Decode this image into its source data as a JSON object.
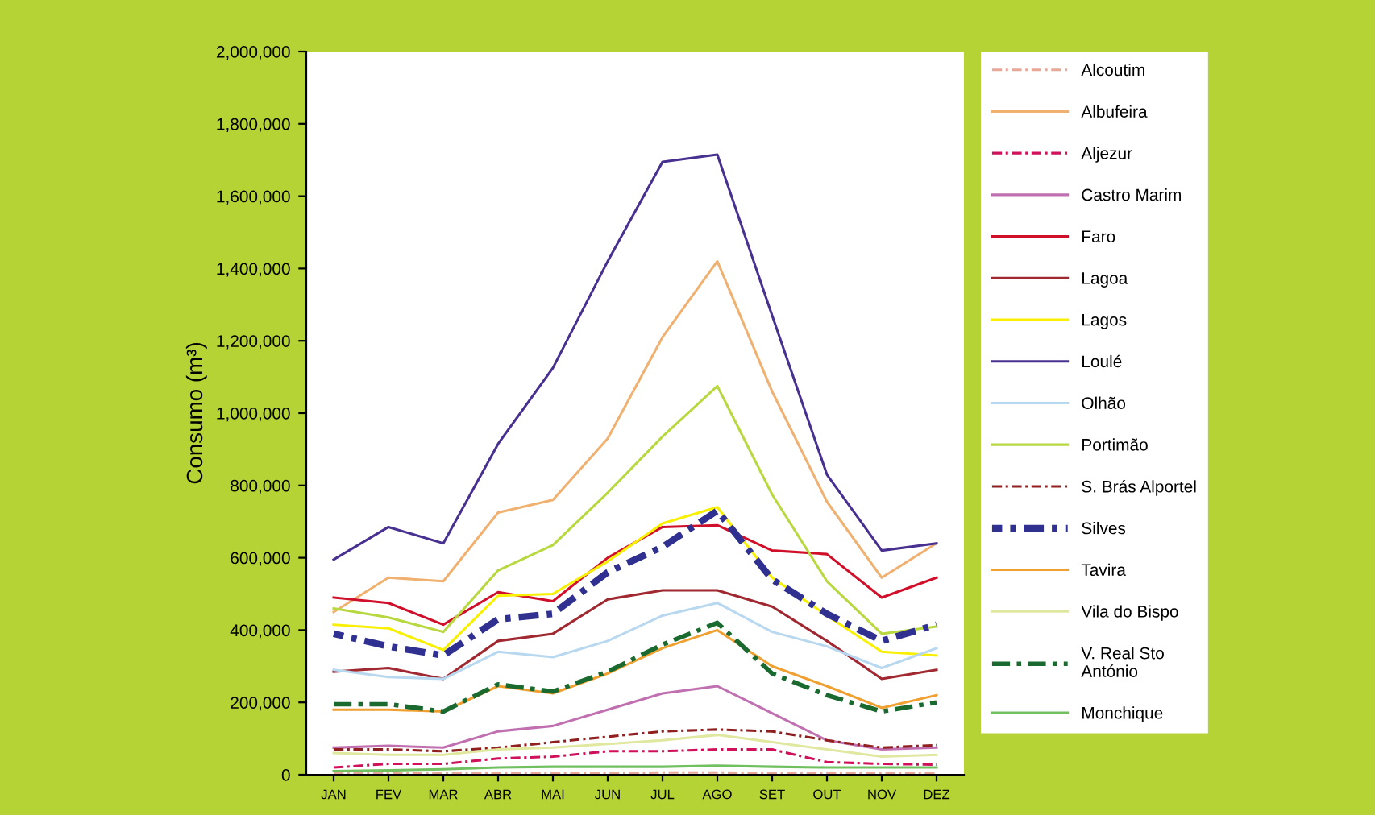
{
  "chart_data": {
    "type": "line",
    "ylabel": "Consumo (m³)",
    "categories": [
      "JAN",
      "FEV",
      "MAR",
      "ABR",
      "MAI",
      "JUN",
      "JUL",
      "AGO",
      "SET",
      "OUT",
      "NOV",
      "DEZ"
    ],
    "ylim": [
      0,
      2000000
    ],
    "yticks": [
      {
        "value": 0,
        "label": "0"
      },
      {
        "value": 200000,
        "label": "200,000"
      },
      {
        "value": 400000,
        "label": "400,000"
      },
      {
        "value": 600000,
        "label": "600,000"
      },
      {
        "value": 800000,
        "label": "800,000"
      },
      {
        "value": 1000000,
        "label": "1,000,000"
      },
      {
        "value": 1200000,
        "label": "1,200,000"
      },
      {
        "value": 1400000,
        "label": "1,400,000"
      },
      {
        "value": 1600000,
        "label": "1,600,000"
      },
      {
        "value": 1800000,
        "label": "1,800,000"
      },
      {
        "value": 2000000,
        "label": "2,000,000"
      }
    ],
    "grid": false,
    "legend": "right",
    "marker": "none",
    "series": [
      {
        "name": "Alcoutim",
        "color": "#e8a898",
        "line_style": "dashdot",
        "values": [
          4000,
          4000,
          4000,
          5000,
          5000,
          5000,
          6000,
          6000,
          5000,
          5000,
          4000,
          4000
        ]
      },
      {
        "name": "Albufeira",
        "color": "#f0b070",
        "values": [
          450000,
          545000,
          535000,
          725000,
          760000,
          930000,
          1210000,
          1420000,
          1060000,
          755000,
          545000,
          640000
        ]
      },
      {
        "name": "Aljezur",
        "color": "#d0105a",
        "line_style": "dashdot",
        "values": [
          20000,
          30000,
          30000,
          45000,
          50000,
          65000,
          65000,
          70000,
          70000,
          35000,
          30000,
          28000
        ]
      },
      {
        "name": "Castro Marim",
        "color": "#c070b0",
        "values": [
          75000,
          80000,
          75000,
          120000,
          135000,
          180000,
          225000,
          245000,
          170000,
          95000,
          70000,
          75000
        ]
      },
      {
        "name": "Faro",
        "color": "#d0102a",
        "values": [
          490000,
          475000,
          415000,
          505000,
          480000,
          600000,
          685000,
          690000,
          620000,
          610000,
          490000,
          545000
        ]
      },
      {
        "name": "Lagoa",
        "color": "#a02830",
        "values": [
          285000,
          295000,
          265000,
          370000,
          390000,
          485000,
          510000,
          510000,
          465000,
          370000,
          265000,
          290000
        ]
      },
      {
        "name": "Lagos",
        "color": "#f8f000",
        "values": [
          415000,
          405000,
          345000,
          495000,
          500000,
          590000,
          695000,
          740000,
          545000,
          440000,
          340000,
          330000
        ]
      },
      {
        "name": "Loulé",
        "color": "#483090",
        "values": [
          595000,
          685000,
          640000,
          915000,
          1125000,
          1420000,
          1695000,
          1715000,
          1270000,
          830000,
          620000,
          640000
        ]
      },
      {
        "name": "Olhão",
        "color": "#b8d8f0",
        "values": [
          290000,
          270000,
          265000,
          340000,
          325000,
          370000,
          440000,
          475000,
          395000,
          355000,
          295000,
          350000
        ]
      },
      {
        "name": "Portimão",
        "color": "#b8d840",
        "values": [
          460000,
          435000,
          395000,
          565000,
          635000,
          780000,
          935000,
          1075000,
          775000,
          535000,
          390000,
          410000
        ]
      },
      {
        "name": "S. Brás Alportel",
        "color": "#902020",
        "line_style": "dashdot",
        "values": [
          70000,
          70000,
          65000,
          75000,
          90000,
          105000,
          120000,
          125000,
          120000,
          95000,
          75000,
          82000
        ]
      },
      {
        "name": "Silves",
        "color": "#303090",
        "line_style": "dashdot",
        "values": [
          390000,
          355000,
          330000,
          430000,
          445000,
          560000,
          630000,
          730000,
          540000,
          445000,
          370000,
          415000
        ]
      },
      {
        "name": "Tavira",
        "color": "#f0a030",
        "values": [
          180000,
          180000,
          175000,
          245000,
          225000,
          280000,
          350000,
          400000,
          300000,
          245000,
          185000,
          220000
        ]
      },
      {
        "name": "Vila do Bispo",
        "color": "#e0e8a0",
        "values": [
          60000,
          55000,
          55000,
          70000,
          75000,
          85000,
          95000,
          110000,
          90000,
          70000,
          50000,
          55000
        ]
      },
      {
        "name": "V. Real Sto\nAntónio",
        "color": "#1a6a30",
        "line_style": "dashdot",
        "values": [
          195000,
          195000,
          175000,
          250000,
          230000,
          285000,
          360000,
          420000,
          280000,
          220000,
          175000,
          200000
        ]
      },
      {
        "name": "Monchique",
        "color": "#70c060",
        "values": [
          10000,
          12000,
          15000,
          20000,
          22000,
          22000,
          22000,
          25000,
          22000,
          20000,
          20000,
          20000
        ]
      }
    ]
  }
}
